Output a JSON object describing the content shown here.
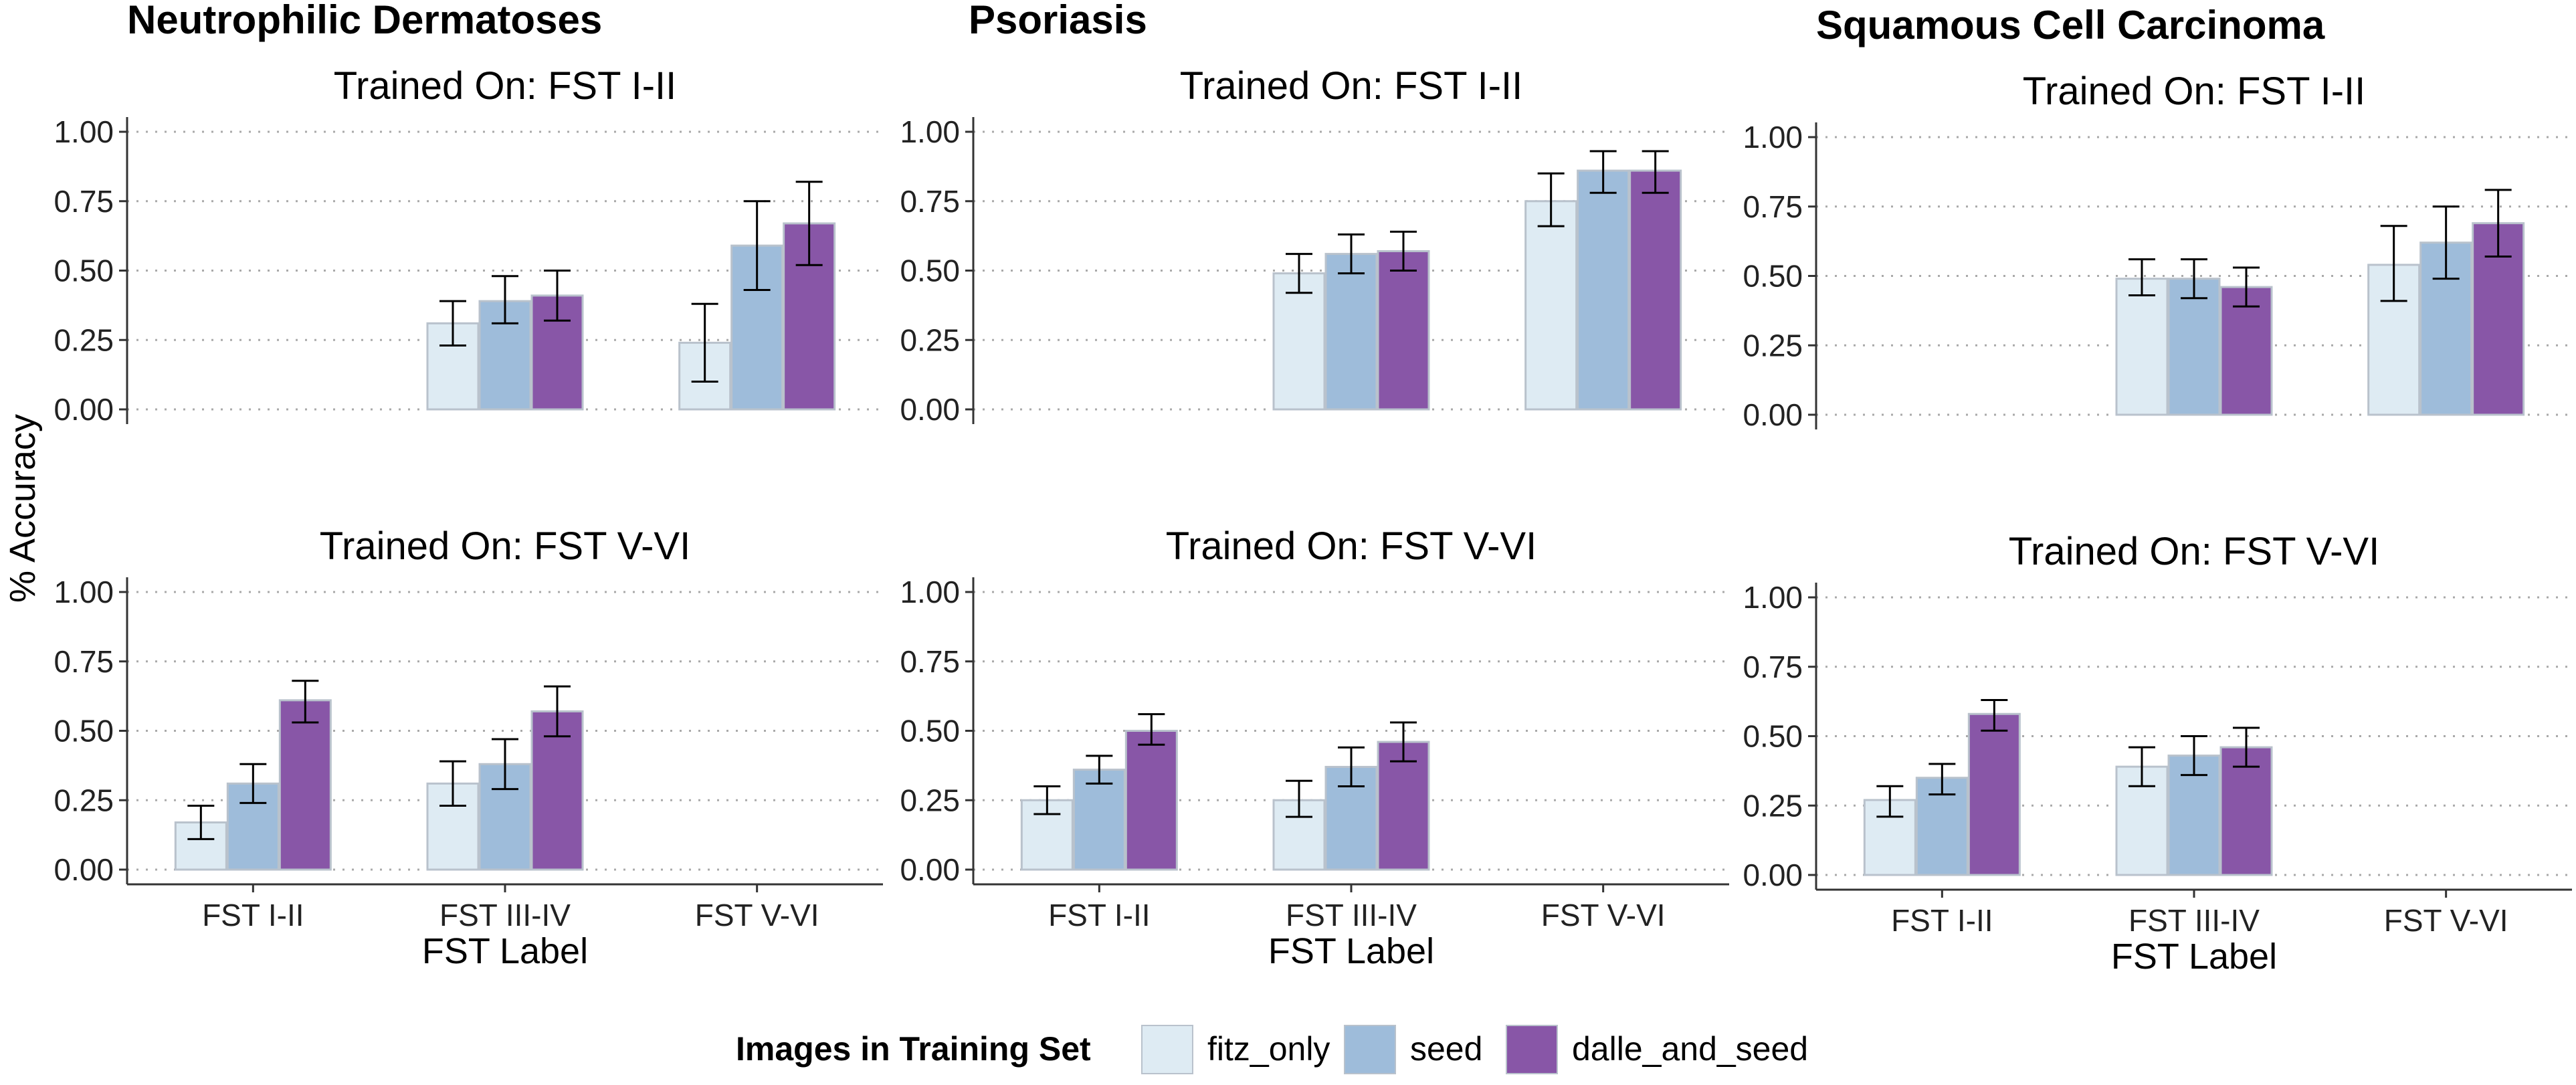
{
  "chart_data": {
    "type": "bar",
    "ylabel": "% Accuracy",
    "xlabel": "FST Label",
    "categories": [
      "FST I-II",
      "FST III-IV",
      "FST V-VI"
    ],
    "yticks": [
      "1.00",
      "0.75",
      "0.50",
      "0.25",
      "0.00"
    ],
    "ylim": [
      0,
      1
    ],
    "legend": {
      "title": "Images in Training Set",
      "entries": [
        "fitz_only",
        "seed",
        "dalle_and_seed"
      ],
      "colors": [
        "#deebf3",
        "#9ebcda",
        "#8856a7"
      ],
      "position": "bottom"
    },
    "diseases": [
      {
        "title": "Neutrophilic Dermatoses",
        "panels": [
          {
            "title": "Trained On: FST I-II",
            "series": [
              {
                "name": "fitz_only",
                "values": [
                  null,
                  0.31,
                  0.24
                ],
                "lower": [
                  null,
                  0.23,
                  0.1
                ],
                "upper": [
                  null,
                  0.39,
                  0.38
                ]
              },
              {
                "name": "seed",
                "values": [
                  null,
                  0.39,
                  0.59
                ],
                "lower": [
                  null,
                  0.31,
                  0.43
                ],
                "upper": [
                  null,
                  0.48,
                  0.75
                ]
              },
              {
                "name": "dalle_and_seed",
                "values": [
                  null,
                  0.41,
                  0.67
                ],
                "lower": [
                  null,
                  0.32,
                  0.52
                ],
                "upper": [
                  null,
                  0.5,
                  0.82
                ]
              }
            ]
          },
          {
            "title": "Trained On: FST V-VI",
            "series": [
              {
                "name": "fitz_only",
                "values": [
                  0.17,
                  0.31,
                  null
                ],
                "lower": [
                  0.11,
                  0.23,
                  null
                ],
                "upper": [
                  0.23,
                  0.39,
                  null
                ]
              },
              {
                "name": "seed",
                "values": [
                  0.31,
                  0.38,
                  null
                ],
                "lower": [
                  0.24,
                  0.29,
                  null
                ],
                "upper": [
                  0.38,
                  0.47,
                  null
                ]
              },
              {
                "name": "dalle_and_seed",
                "values": [
                  0.61,
                  0.57,
                  null
                ],
                "lower": [
                  0.53,
                  0.48,
                  null
                ],
                "upper": [
                  0.68,
                  0.66,
                  null
                ]
              }
            ]
          }
        ]
      },
      {
        "title": "Psoriasis",
        "panels": [
          {
            "title": "Trained On: FST I-II",
            "series": [
              {
                "name": "fitz_only",
                "values": [
                  null,
                  0.49,
                  0.75
                ],
                "lower": [
                  null,
                  0.42,
                  0.66
                ],
                "upper": [
                  null,
                  0.56,
                  0.85
                ]
              },
              {
                "name": "seed",
                "values": [
                  null,
                  0.56,
                  0.86
                ],
                "lower": [
                  null,
                  0.49,
                  0.78
                ],
                "upper": [
                  null,
                  0.63,
                  0.93
                ]
              },
              {
                "name": "dalle_and_seed",
                "values": [
                  null,
                  0.57,
                  0.86
                ],
                "lower": [
                  null,
                  0.5,
                  0.78
                ],
                "upper": [
                  null,
                  0.64,
                  0.93
                ]
              }
            ]
          },
          {
            "title": "Trained On: FST V-VI",
            "series": [
              {
                "name": "fitz_only",
                "values": [
                  0.25,
                  0.25,
                  null
                ],
                "lower": [
                  0.2,
                  0.19,
                  null
                ],
                "upper": [
                  0.3,
                  0.32,
                  null
                ]
              },
              {
                "name": "seed",
                "values": [
                  0.36,
                  0.37,
                  null
                ],
                "lower": [
                  0.31,
                  0.3,
                  null
                ],
                "upper": [
                  0.41,
                  0.44,
                  null
                ]
              },
              {
                "name": "dalle_and_seed",
                "values": [
                  0.5,
                  0.46,
                  null
                ],
                "lower": [
                  0.45,
                  0.39,
                  null
                ],
                "upper": [
                  0.56,
                  0.53,
                  null
                ]
              }
            ]
          }
        ]
      },
      {
        "title": "Squamous Cell Carcinoma",
        "panels": [
          {
            "title": "Trained On: FST I-II",
            "series": [
              {
                "name": "fitz_only",
                "values": [
                  null,
                  0.49,
                  0.54
                ],
                "lower": [
                  null,
                  0.43,
                  0.41
                ],
                "upper": [
                  null,
                  0.56,
                  0.68
                ]
              },
              {
                "name": "seed",
                "values": [
                  null,
                  0.49,
                  0.62
                ],
                "lower": [
                  null,
                  0.42,
                  0.49
                ],
                "upper": [
                  null,
                  0.56,
                  0.75
                ]
              },
              {
                "name": "dalle_and_seed",
                "values": [
                  null,
                  0.46,
                  0.69
                ],
                "lower": [
                  null,
                  0.39,
                  0.57
                ],
                "upper": [
                  null,
                  0.53,
                  0.81
                ]
              }
            ]
          },
          {
            "title": "Trained On: FST V-VI",
            "series": [
              {
                "name": "fitz_only",
                "values": [
                  0.27,
                  0.39,
                  null
                ],
                "lower": [
                  0.21,
                  0.32,
                  null
                ],
                "upper": [
                  0.32,
                  0.46,
                  null
                ]
              },
              {
                "name": "seed",
                "values": [
                  0.35,
                  0.43,
                  null
                ],
                "lower": [
                  0.29,
                  0.36,
                  null
                ],
                "upper": [
                  0.4,
                  0.5,
                  null
                ]
              },
              {
                "name": "dalle_and_seed",
                "values": [
                  0.58,
                  0.46,
                  null
                ],
                "lower": [
                  0.52,
                  0.39,
                  null
                ],
                "upper": [
                  0.63,
                  0.53,
                  null
                ]
              }
            ]
          }
        ]
      }
    ]
  }
}
